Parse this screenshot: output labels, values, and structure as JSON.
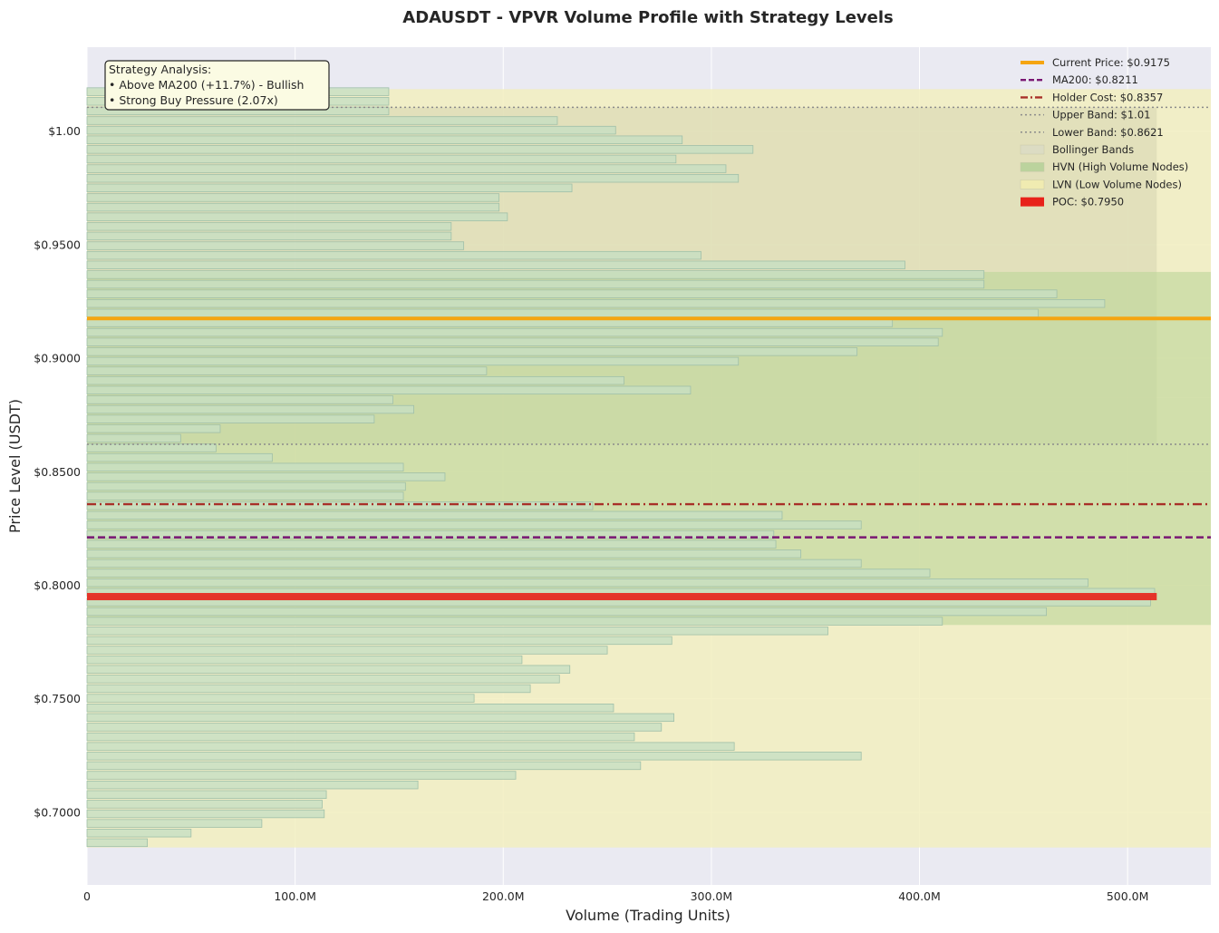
{
  "chart_data": {
    "type": "bar",
    "orientation": "horizontal",
    "title": "ADAUSDT - VPVR Volume Profile with Strategy Levels",
    "xlabel": "Volume (Trading Units)",
    "ylabel": "Price Level (USDT)",
    "xlim": [
      0,
      540
    ],
    "ylim": [
      0.668,
      1.037
    ],
    "x_unit": "M",
    "grid": true,
    "legend_position": "top-right",
    "x_ticks": [
      {
        "value": 0,
        "label": "0"
      },
      {
        "value": 100,
        "label": "100.0M"
      },
      {
        "value": 200,
        "label": "200.0M"
      },
      {
        "value": 300,
        "label": "300.0M"
      },
      {
        "value": 400,
        "label": "400.0M"
      },
      {
        "value": 500,
        "label": "500.0M"
      }
    ],
    "y_ticks": [
      {
        "value": 0.7,
        "label": "$0.7000"
      },
      {
        "value": 0.75,
        "label": "$0.7500"
      },
      {
        "value": 0.8,
        "label": "$0.8000"
      },
      {
        "value": 0.85,
        "label": "$0.8500"
      },
      {
        "value": 0.9,
        "label": "$0.9000"
      },
      {
        "value": 0.95,
        "label": "$0.9500"
      },
      {
        "value": 1.0,
        "label": "$1.00"
      }
    ],
    "price_bins": {
      "min_price": 0.6845,
      "max_price": 1.0195,
      "volumes": [
        29,
        50,
        84,
        114,
        113,
        115,
        159,
        206,
        266,
        372,
        311,
        263,
        276,
        282,
        253,
        186,
        213,
        227,
        232,
        209,
        250,
        281,
        356,
        411,
        461,
        511,
        513,
        481,
        405,
        372,
        343,
        331,
        330,
        372,
        334,
        243,
        152,
        153,
        172,
        152,
        89,
        62,
        45,
        64,
        138,
        157,
        147,
        290,
        258,
        192,
        313,
        370,
        409,
        411,
        387,
        457,
        489,
        466,
        431,
        431,
        393,
        295,
        181,
        175,
        175,
        202,
        198,
        198,
        233,
        313,
        307,
        283,
        320,
        286,
        254,
        226,
        145,
        145,
        145
      ]
    },
    "levels": [
      {
        "name": "Current Price: $0.9175",
        "value": 0.9175,
        "color": "#f5a511",
        "style": "solid"
      },
      {
        "name": "MA200: $0.8211",
        "value": 0.8211,
        "color": "#7a1873",
        "style": "dashed"
      },
      {
        "name": "Holder Cost: $0.8357",
        "value": 0.8357,
        "color": "#a83028",
        "style": "dashdot"
      },
      {
        "name": "Upper Band: $1.01",
        "value": 1.0105,
        "color": "#8b8b8b",
        "style": "dotted"
      },
      {
        "name": "Lower Band: $0.8621",
        "value": 0.8621,
        "color": "#8b8b8b",
        "style": "dotted"
      }
    ],
    "bollinger_band": {
      "name": "Bollinger Bands",
      "upper": 1.0105,
      "lower": 0.8621,
      "color": "#d6d6b0",
      "x_max": 514
    },
    "hvn_zones": [
      {
        "name": "HVN (High Volume Nodes)",
        "low": 0.7825,
        "high": 0.8825
      },
      {
        "name": "HVN (High Volume Nodes)",
        "low": 0.8825,
        "high": 0.938
      }
    ],
    "lvn_zone": {
      "name": "LVN (Low Volume Nodes)",
      "low": 0.6845,
      "high": 1.0185
    },
    "poc": {
      "name": "POC: $0.7950",
      "value": 0.795,
      "color": "#e8221a"
    },
    "annotation": {
      "lines": [
        "Strategy Analysis:",
        "• Above MA200 (+11.7%) - Bullish",
        "• Strong Buy Pressure (2.07x)"
      ]
    },
    "legend": [
      {
        "label": "Current Price: $0.9175",
        "kind": "line",
        "color": "#f5a511",
        "style": "solid"
      },
      {
        "label": "MA200: $0.8211",
        "kind": "line",
        "color": "#7a1873",
        "style": "dashed"
      },
      {
        "label": "Holder Cost: $0.8357",
        "kind": "line",
        "color": "#a83028",
        "style": "dashdot"
      },
      {
        "label": "Upper Band: $1.01",
        "kind": "line",
        "color": "#8b8b8b",
        "style": "dotted"
      },
      {
        "label": "Lower Band: $0.8621",
        "kind": "line",
        "color": "#8b8b8b",
        "style": "dotted"
      },
      {
        "label": "Bollinger Bands",
        "kind": "patch",
        "color": "#dcdcc4"
      },
      {
        "label": "HVN (High Volume Nodes)",
        "kind": "patch",
        "color": "#b7d29a"
      },
      {
        "label": "LVN (Low Volume Nodes)",
        "kind": "patch",
        "color": "#f2ecb0"
      },
      {
        "label": "POC: $0.7950",
        "kind": "patch",
        "color": "#e8221a"
      }
    ],
    "colors": {
      "plot_background": "#eaeaf2",
      "bar_fill": "#c7dfc3",
      "bar_edge": "#9fbfa8",
      "lvn_fill": "#f2eec0",
      "hvn_fill": "#bcd597",
      "grid": "#ffffff"
    }
  }
}
